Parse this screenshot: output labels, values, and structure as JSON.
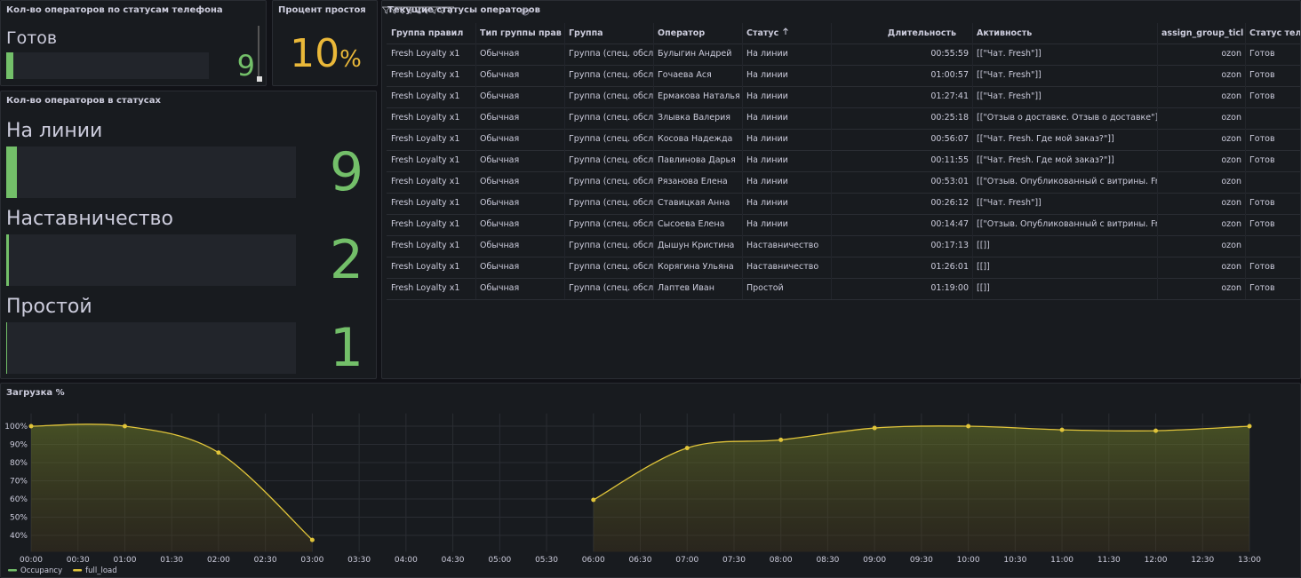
{
  "panels": {
    "phone_status": {
      "title": "Кол-во операторов по статусам телефона",
      "max": 250,
      "color": "#73bf69",
      "rows": [
        {
          "label": "Готов",
          "value": 9
        }
      ]
    },
    "idle": {
      "title": "Процент простоя",
      "value": 10,
      "unit": "%",
      "color": "#eab839"
    },
    "status_count": {
      "title": "Кол-во операторов в статусах",
      "max": 250,
      "color": "#73bf69",
      "rows": [
        {
          "label": "На линии",
          "value": 9
        },
        {
          "label": "Наставничество",
          "value": 2
        },
        {
          "label": "Простой",
          "value": 1
        }
      ]
    },
    "table": {
      "title": "Текущие статусы операторов",
      "sort_column": 4,
      "columns": [
        "Группа правил",
        "Тип группы прав",
        "Группа",
        "Оператор",
        "Статус",
        "Длительность",
        "Активность",
        "assign_group_ticl",
        "Статус теле"
      ],
      "rows": [
        [
          "Fresh Loyalty x1",
          "Обычная",
          "Группа (спец. обсл.)",
          "Булыгин Андрей",
          "На линии",
          "00:55:59",
          "[[\"Чат. Fresh\"]]",
          "ozon",
          "Готов"
        ],
        [
          "Fresh Loyalty x1",
          "Обычная",
          "Группа (спец. обсл.)",
          "Гочаева Ася",
          "На линии",
          "01:00:57",
          "[[\"Чат. Fresh\"]]",
          "ozon",
          "Готов"
        ],
        [
          "Fresh Loyalty x1",
          "Обычная",
          "Группа (спец. обсл.)",
          "Ермакова Наталья",
          "На линии",
          "01:27:41",
          "[[\"Чат. Fresh\"]]",
          "ozon",
          "Готов"
        ],
        [
          "Fresh Loyalty x1",
          "Обычная",
          "Группа (спец. обсл.)",
          "Злывка Валерия",
          "На линии",
          "00:25:18",
          "[[\"Отзыв о доставке. Отзыв о доставке\"]]",
          "ozon",
          ""
        ],
        [
          "Fresh Loyalty x1",
          "Обычная",
          "Группа (спец. обсл.)",
          "Косова Надежда",
          "На линии",
          "00:56:07",
          "[[\"Чат. Fresh. Где мой заказ?\"]]",
          "ozon",
          "Готов"
        ],
        [
          "Fresh Loyalty x1",
          "Обычная",
          "Группа (спец. обсл.)",
          "Павлинова Дарья",
          "На линии",
          "00:11:55",
          "[[\"Чат. Fresh. Где мой заказ?\"]]",
          "ozon",
          "Готов"
        ],
        [
          "Fresh Loyalty x1",
          "Обычная",
          "Группа (спец. обсл.)",
          "Рязанова Елена",
          "На линии",
          "00:53:01",
          "[[\"Отзыв. Опубликованный с витрины. Fresl",
          "ozon",
          ""
        ],
        [
          "Fresh Loyalty x1",
          "Обычная",
          "Группа (спец. обсл.)",
          "Ставицкая Анна",
          "На линии",
          "00:26:12",
          "[[\"Чат. Fresh\"]]",
          "ozon",
          "Готов"
        ],
        [
          "Fresh Loyalty x1",
          "Обычная",
          "Группа (спец. обсл.)",
          "Сысоева Елена",
          "На линии",
          "00:14:47",
          "[[\"Отзыв. Опубликованный с витрины. Fresl",
          "ozon",
          "Готов"
        ],
        [
          "Fresh Loyalty x1",
          "Обычная",
          "Группа (спец. обсл.)",
          "Дышун Кристина",
          "Наставничество",
          "00:17:13",
          "[[]]",
          "ozon",
          ""
        ],
        [
          "Fresh Loyalty x1",
          "Обычная",
          "Группа (спец. обсл.)",
          "Корягина Ульяна",
          "Наставничество",
          "01:26:01",
          "[[]]",
          "ozon",
          "Готов"
        ],
        [
          "Fresh Loyalty x1",
          "Обычная",
          "Группа (спец. обсл.)",
          "Лаптев Иван",
          "Простой",
          "01:19:00",
          "[[]]",
          "ozon",
          "Готов"
        ]
      ]
    }
  },
  "chart_data": {
    "type": "line",
    "title": "Загрузка %",
    "x": [
      "00:00",
      "01:00",
      "02:00",
      "03:00",
      "04:00",
      "05:00",
      "06:00",
      "07:00",
      "08:00",
      "09:00",
      "10:00",
      "11:00",
      "12:00",
      "13:00"
    ],
    "series": [
      {
        "name": "Occupancy",
        "color": "#73bf69",
        "values": [
          null,
          null,
          null,
          null,
          null,
          null,
          null,
          null,
          null,
          null,
          null,
          null,
          null,
          null
        ]
      },
      {
        "name": "full_load",
        "color": "#e0c43a",
        "values": [
          100,
          100,
          85.5,
          37.5,
          null,
          null,
          59.5,
          88,
          92.5,
          99,
          100,
          98,
          97.5,
          100
        ]
      }
    ],
    "xticks": [
      "00:00",
      "00:30",
      "01:00",
      "01:30",
      "02:00",
      "02:30",
      "03:00",
      "03:30",
      "04:00",
      "04:30",
      "05:00",
      "05:30",
      "06:00",
      "06:30",
      "07:00",
      "07:30",
      "08:00",
      "08:30",
      "09:00",
      "09:30",
      "10:00",
      "10:30",
      "11:00",
      "11:30",
      "12:00",
      "12:30",
      "13:00"
    ],
    "xlim": [
      "00:00",
      "13:00"
    ],
    "ylim": [
      31,
      107
    ],
    "yticks": [
      {
        "value": 100,
        "label": "100%"
      },
      {
        "value": 90,
        "label": "90%"
      },
      {
        "value": 80,
        "label": "80%"
      },
      {
        "value": 70,
        "label": "70%"
      },
      {
        "value": 60,
        "label": "60%"
      },
      {
        "value": 50,
        "label": "50%"
      },
      {
        "value": 40,
        "label": "40%"
      }
    ],
    "grid": true,
    "legend": "bottom-left"
  }
}
